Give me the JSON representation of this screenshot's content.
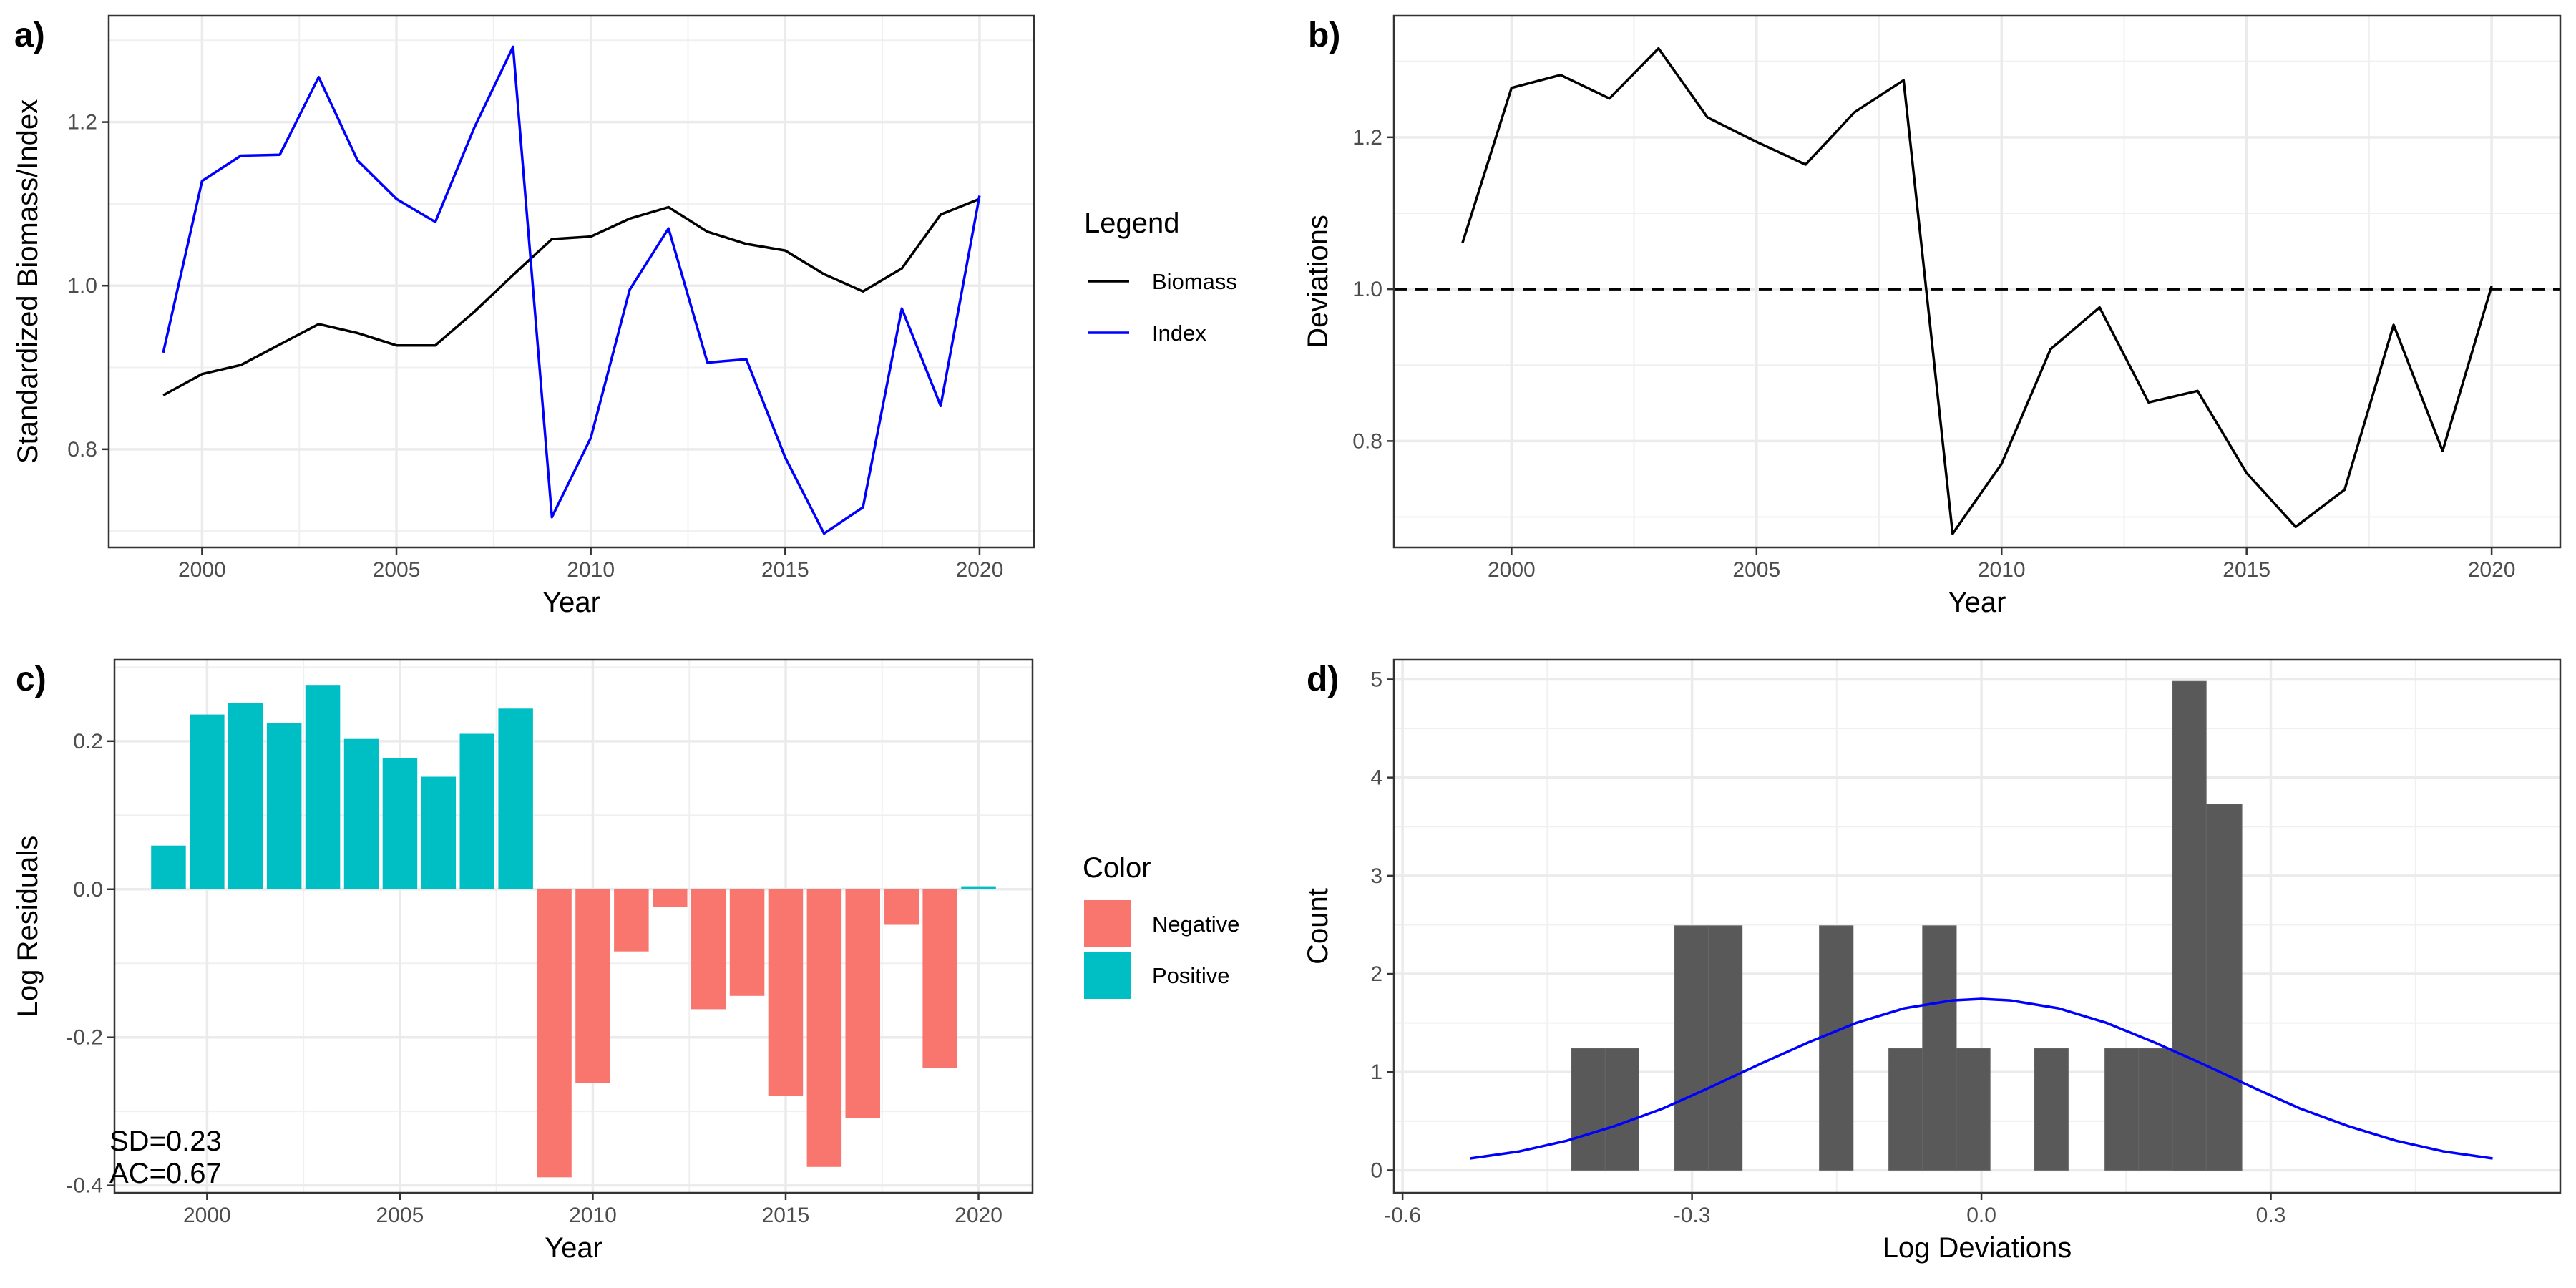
{
  "chart_data": [
    {
      "panel": "a)",
      "type": "line",
      "xlabel": "Year",
      "ylabel": "Standardized Biomass/Index",
      "xlim": [
        1997.6,
        2021.4
      ],
      "ylim": [
        0.68,
        1.33
      ],
      "x_ticks": [
        2000,
        2005,
        2010,
        2015,
        2020
      ],
      "y_ticks": [
        0.8,
        1.0,
        1.2
      ],
      "y_tick_labels": [
        "0.8",
        "1.0",
        "1.2"
      ],
      "grid": true,
      "legend": {
        "title": "Legend",
        "position": "right"
      },
      "x": [
        1999,
        2000,
        2001,
        2002,
        2003,
        2004,
        2005,
        2006,
        2007,
        2008,
        2009,
        2010,
        2011,
        2012,
        2013,
        2014,
        2015,
        2016,
        2017,
        2018,
        2019,
        2020
      ],
      "series": [
        {
          "name": "Biomass",
          "color": "#000000",
          "values": [
            0.866,
            0.892,
            0.903,
            0.928,
            0.953,
            0.942,
            0.927,
            0.927,
            0.968,
            1.013,
            1.057,
            1.06,
            1.082,
            1.096,
            1.066,
            1.051,
            1.043,
            1.014,
            0.993,
            1.021,
            1.087,
            1.106
          ]
        },
        {
          "name": "Index",
          "color": "#0000ff",
          "values": [
            0.918,
            1.128,
            1.159,
            1.16,
            1.255,
            1.153,
            1.106,
            1.078,
            1.193,
            1.292,
            0.717,
            0.814,
            0.995,
            1.07,
            0.906,
            0.91,
            0.79,
            0.697,
            0.729,
            0.972,
            0.853,
            1.11
          ]
        }
      ]
    },
    {
      "panel": "b)",
      "type": "line",
      "xlabel": "Year",
      "ylabel": "Deviations",
      "xlim": [
        1997.6,
        2021.4
      ],
      "ylim": [
        0.66,
        1.36
      ],
      "x_ticks": [
        2000,
        2005,
        2010,
        2015,
        2020
      ],
      "y_ticks": [
        0.8,
        1.0,
        1.2
      ],
      "y_tick_labels": [
        "0.8",
        "1.0",
        "1.2"
      ],
      "grid": true,
      "reference_line": 1.0,
      "x": [
        1999,
        2000,
        2001,
        2002,
        2003,
        2004,
        2005,
        2006,
        2007,
        2008,
        2009,
        2010,
        2011,
        2012,
        2013,
        2014,
        2015,
        2016,
        2017,
        2018,
        2019,
        2020
      ],
      "series": [
        {
          "color": "#000000",
          "values": [
            1.061,
            1.265,
            1.282,
            1.251,
            1.317,
            1.226,
            1.194,
            1.164,
            1.233,
            1.275,
            0.678,
            0.77,
            0.921,
            0.976,
            0.851,
            0.866,
            0.758,
            0.687,
            0.736,
            0.953,
            0.787,
            1.004
          ]
        }
      ]
    },
    {
      "panel": "c)",
      "type": "bar",
      "xlabel": "Year",
      "ylabel": "Log Residuals",
      "xlim": [
        1997.6,
        2021.4
      ],
      "ylim": [
        -0.41,
        0.31
      ],
      "x_ticks": [
        2000,
        2005,
        2010,
        2015,
        2020
      ],
      "y_ticks": [
        -0.4,
        -0.2,
        0.0,
        0.2
      ],
      "y_tick_labels": [
        "-0.4",
        "-0.2",
        "0.0",
        "0.2"
      ],
      "grid": true,
      "legend": {
        "title": "Color",
        "position": "right",
        "entries": [
          {
            "name": "Negative",
            "color": "#f8766d"
          },
          {
            "name": "Positive",
            "color": "#00bfc4"
          }
        ]
      },
      "x": [
        1999,
        2000,
        2001,
        2002,
        2003,
        2004,
        2005,
        2006,
        2007,
        2008,
        2009,
        2010,
        2011,
        2012,
        2013,
        2014,
        2015,
        2016,
        2017,
        2018,
        2019,
        2020
      ],
      "values": [
        0.059,
        0.236,
        0.252,
        0.224,
        0.276,
        0.203,
        0.177,
        0.152,
        0.21,
        0.244,
        -0.389,
        -0.262,
        -0.084,
        -0.024,
        -0.162,
        -0.144,
        -0.279,
        -0.375,
        -0.309,
        -0.048,
        -0.241,
        0.004
      ],
      "annotations": [
        "SD=0.23",
        "AC=0.67"
      ]
    },
    {
      "panel": "d)",
      "type": "bar",
      "xlabel": "Log Deviations",
      "ylabel": "Count",
      "xlim": [
        -0.609,
        0.6
      ],
      "ylim": [
        -0.23,
        5.2
      ],
      "x_ticks": [
        -0.6,
        -0.3,
        0.0,
        0.3
      ],
      "x_tick_labels": [
        "-0.6",
        "-0.3",
        "0.0",
        "0.3"
      ],
      "y_ticks": [
        0,
        1,
        2,
        3,
        4,
        5
      ],
      "y_tick_labels": [
        "0",
        "1",
        "2",
        "3",
        "4",
        "5"
      ],
      "grid": true,
      "bar_color": "#595959",
      "bins": [
        {
          "x0": -0.425,
          "x1": -0.39,
          "count": 1.24
        },
        {
          "x0": -0.39,
          "x1": -0.355,
          "count": 1.24
        },
        {
          "x0": -0.318,
          "x1": -0.283,
          "count": 2.49
        },
        {
          "x0": -0.283,
          "x1": -0.248,
          "count": 2.49
        },
        {
          "x0": -0.168,
          "x1": -0.133,
          "count": 2.49
        },
        {
          "x0": -0.096,
          "x1": -0.061,
          "count": 1.24
        },
        {
          "x0": -0.061,
          "x1": -0.026,
          "count": 2.49
        },
        {
          "x0": -0.026,
          "x1": 0.009,
          "count": 1.24
        },
        {
          "x0": 0.055,
          "x1": 0.09,
          "count": 1.24
        },
        {
          "x0": 0.128,
          "x1": 0.163,
          "count": 1.24
        },
        {
          "x0": 0.163,
          "x1": 0.198,
          "count": 1.24
        },
        {
          "x0": 0.198,
          "x1": 0.233,
          "count": 4.98
        },
        {
          "x0": 0.233,
          "x1": 0.27,
          "count": 3.73
        }
      ],
      "density_curve": {
        "color": "#0000ff",
        "x": [
          -0.53,
          -0.48,
          -0.43,
          -0.38,
          -0.33,
          -0.28,
          -0.23,
          -0.18,
          -0.13,
          -0.08,
          -0.03,
          0.0,
          0.03,
          0.08,
          0.13,
          0.18,
          0.23,
          0.28,
          0.33,
          0.38,
          0.43,
          0.48,
          0.53
        ],
        "y": [
          0.12,
          0.19,
          0.3,
          0.45,
          0.63,
          0.85,
          1.08,
          1.3,
          1.5,
          1.65,
          1.73,
          1.745,
          1.73,
          1.65,
          1.5,
          1.3,
          1.08,
          0.85,
          0.63,
          0.45,
          0.3,
          0.19,
          0.12
        ]
      }
    }
  ]
}
